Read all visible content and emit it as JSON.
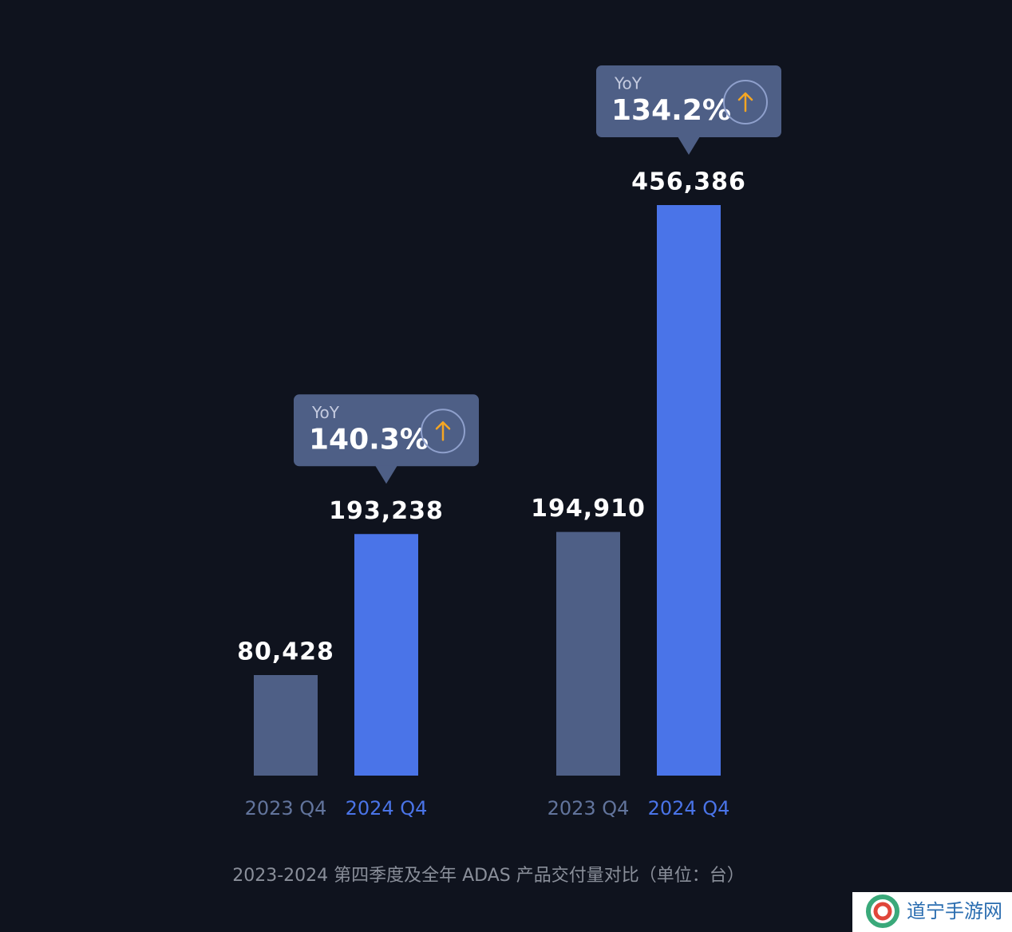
{
  "chart_data": [
    {
      "type": "bar",
      "categories": [
        "2023 Q4",
        "2024 Q4"
      ],
      "values": [
        80428,
        193238
      ],
      "value_labels": [
        "80,428",
        "193,238"
      ],
      "colors": [
        "#4e5f86",
        "#4a74e8"
      ],
      "label_colors": [
        "#62749c",
        "#4a74e8"
      ],
      "annotation": {
        "label": "YoY",
        "text": "140.3%"
      }
    },
    {
      "type": "bar",
      "categories": [
        "2023 Q4",
        "2024 Q4"
      ],
      "values": [
        194910,
        456386
      ],
      "value_labels": [
        "194,910",
        "456,386"
      ],
      "colors": [
        "#4e5f86",
        "#4a74e8"
      ],
      "label_colors": [
        "#62749c",
        "#4a74e8"
      ],
      "annotation": {
        "label": "YoY",
        "text": "134.2%"
      }
    }
  ],
  "caption": "2023-2024 第四季度及全年 ADAS 产品交付量对比（单位：台）",
  "watermark": "道宁手游网"
}
